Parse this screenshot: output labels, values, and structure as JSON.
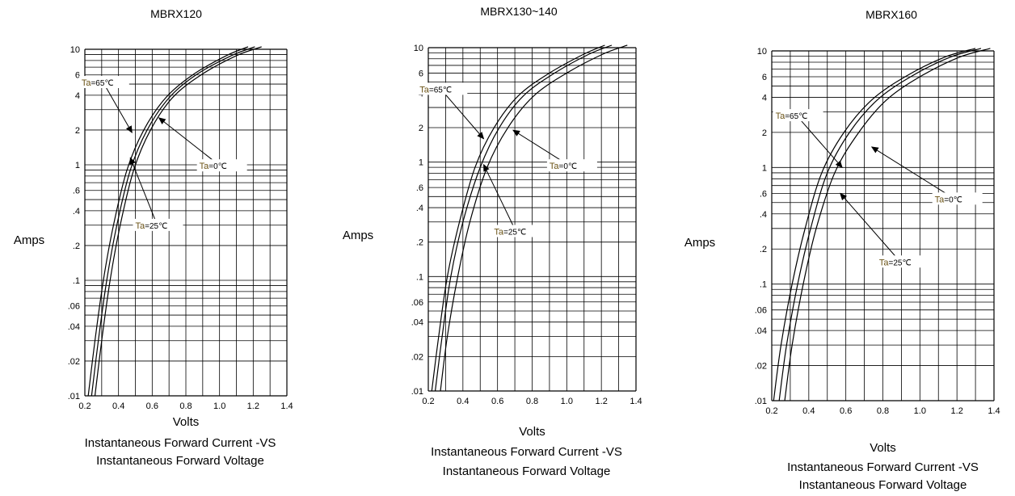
{
  "chart_data": [
    {
      "type": "line",
      "title": "MBRX120",
      "ylabel": "Amps",
      "xlabel": "Volts",
      "caption_line1": "Instantaneous Forward Current -VS",
      "caption_line2": "Instantaneous Forward Voltage",
      "xlim": [
        0.2,
        1.4
      ],
      "ylim": [
        0.01,
        10
      ],
      "yscale": "log",
      "grid": true,
      "x_ticks": [
        "0.2",
        "0.4",
        "0.6",
        "0.8",
        "1.0",
        "1.2",
        "1.4"
      ],
      "y_ticks": [
        {
          "value": 0.01,
          "label": ".01"
        },
        {
          "value": 0.02,
          "label": ".02"
        },
        {
          "value": 0.04,
          "label": ".04"
        },
        {
          "value": 0.06,
          "label": ".06"
        },
        {
          "value": 0.1,
          "label": ".1"
        },
        {
          "value": 0.2,
          "label": ".2"
        },
        {
          "value": 0.4,
          "label": ".4"
        },
        {
          "value": 0.6,
          "label": ".6"
        },
        {
          "value": 1,
          "label": "1"
        },
        {
          "value": 2,
          "label": "2"
        },
        {
          "value": 4,
          "label": "4"
        },
        {
          "value": 6,
          "label": "6"
        },
        {
          "value": 10,
          "label": "10"
        }
      ],
      "series": [
        {
          "name": "Ta=65℃",
          "x": [
            0.22,
            0.26,
            0.31,
            0.37,
            0.45,
            0.55,
            0.68,
            0.84,
            1.04,
            1.17
          ],
          "y": [
            0.01,
            0.03,
            0.1,
            0.3,
            0.9,
            2.0,
            3.8,
            6.0,
            8.8,
            10.5
          ]
        },
        {
          "name": "Ta=25℃",
          "x": [
            0.24,
            0.28,
            0.33,
            0.39,
            0.47,
            0.57,
            0.7,
            0.86,
            1.07,
            1.21
          ],
          "y": [
            0.01,
            0.03,
            0.1,
            0.3,
            0.9,
            2.0,
            3.8,
            6.0,
            8.8,
            10.5
          ]
        },
        {
          "name": "Ta=0℃",
          "x": [
            0.26,
            0.3,
            0.35,
            0.41,
            0.49,
            0.59,
            0.72,
            0.89,
            1.1,
            1.25
          ],
          "y": [
            0.01,
            0.03,
            0.1,
            0.3,
            0.9,
            2.0,
            3.8,
            6.0,
            8.8,
            10.5
          ]
        }
      ],
      "annotations": [
        {
          "prefix": "Ta",
          "suffix": "=65℃",
          "at": [
            0.18,
            5.0
          ],
          "target": [
            0.48,
            1.9
          ]
        },
        {
          "prefix": "Ta",
          "suffix": "=25℃",
          "at": [
            0.5,
            0.29
          ],
          "target": [
            0.47,
            1.15
          ]
        },
        {
          "prefix": "Ta",
          "suffix": "=0℃",
          "at": [
            0.88,
            0.95
          ],
          "target": [
            0.64,
            2.55
          ]
        }
      ]
    },
    {
      "type": "line",
      "title": "MBRX130~140",
      "ylabel": "Amps",
      "xlabel": "Volts",
      "caption_line1": "Instantaneous Forward Current -VS",
      "caption_line2": "Instantaneous Forward Voltage",
      "xlim": [
        0.2,
        1.4
      ],
      "ylim": [
        0.01,
        10
      ],
      "yscale": "log",
      "grid": true,
      "x_ticks": [
        "0.2",
        "0.4",
        "0.6",
        "0.8",
        "1.0",
        "1.2",
        "1.4"
      ],
      "y_ticks": [
        {
          "value": 0.01,
          "label": ".01"
        },
        {
          "value": 0.02,
          "label": ".02"
        },
        {
          "value": 0.04,
          "label": ".04"
        },
        {
          "value": 0.06,
          "label": ".06"
        },
        {
          "value": 0.1,
          "label": ".1"
        },
        {
          "value": 0.2,
          "label": ".2"
        },
        {
          "value": 0.4,
          "label": ".4"
        },
        {
          "value": 0.6,
          "label": ".6"
        },
        {
          "value": 1,
          "label": "1"
        },
        {
          "value": 2,
          "label": "2"
        },
        {
          "value": 4,
          "label": "4"
        },
        {
          "value": 6,
          "label": "6"
        },
        {
          "value": 10,
          "label": "10"
        }
      ],
      "series": [
        {
          "name": "Ta=65℃",
          "x": [
            0.22,
            0.26,
            0.31,
            0.38,
            0.47,
            0.58,
            0.72,
            0.9,
            1.1,
            1.22
          ],
          "y": [
            0.01,
            0.03,
            0.1,
            0.3,
            0.9,
            2.0,
            3.8,
            6.0,
            8.8,
            10.5
          ]
        },
        {
          "name": "Ta=25℃",
          "x": [
            0.24,
            0.28,
            0.33,
            0.4,
            0.5,
            0.61,
            0.75,
            0.93,
            1.13,
            1.26
          ],
          "y": [
            0.01,
            0.03,
            0.1,
            0.3,
            0.9,
            2.0,
            3.8,
            6.0,
            8.8,
            10.5
          ]
        },
        {
          "name": "Ta=0℃",
          "x": [
            0.27,
            0.31,
            0.37,
            0.44,
            0.54,
            0.66,
            0.81,
            1.0,
            1.21,
            1.35
          ],
          "y": [
            0.01,
            0.03,
            0.1,
            0.3,
            0.9,
            2.0,
            3.8,
            6.0,
            8.8,
            10.5
          ]
        }
      ],
      "annotations": [
        {
          "prefix": "Ta",
          "suffix": "=65℃",
          "at": [
            0.15,
            4.2
          ],
          "target": [
            0.52,
            1.6
          ]
        },
        {
          "prefix": "Ta",
          "suffix": "=25℃",
          "at": [
            0.58,
            0.24
          ],
          "target": [
            0.52,
            0.95
          ]
        },
        {
          "prefix": "Ta",
          "suffix": "=0℃",
          "at": [
            0.9,
            0.9
          ],
          "target": [
            0.69,
            1.9
          ]
        }
      ]
    },
    {
      "type": "line",
      "title": "MBRX160",
      "ylabel": "Amps",
      "xlabel": "Volts",
      "caption_line1": "Instantaneous Forward Current -VS",
      "caption_line2": "Instantaneous Forward Voltage",
      "xlim": [
        0.2,
        1.4
      ],
      "ylim": [
        0.01,
        10
      ],
      "yscale": "log",
      "grid": true,
      "x_ticks": [
        "0.2",
        "0.4",
        "0.6",
        "0.8",
        "1.0",
        "1.2",
        "1.4"
      ],
      "y_ticks": [
        {
          "value": 0.01,
          "label": ".01"
        },
        {
          "value": 0.02,
          "label": ".02"
        },
        {
          "value": 0.04,
          "label": ".04"
        },
        {
          "value": 0.06,
          "label": ".06"
        },
        {
          "value": 0.1,
          "label": ".1"
        },
        {
          "value": 0.2,
          "label": ".2"
        },
        {
          "value": 0.4,
          "label": ".4"
        },
        {
          "value": 0.6,
          "label": ".6"
        },
        {
          "value": 1,
          "label": "1"
        },
        {
          "value": 2,
          "label": "2"
        },
        {
          "value": 4,
          "label": "4"
        },
        {
          "value": 6,
          "label": "6"
        },
        {
          "value": 10,
          "label": "10"
        }
      ],
      "series": [
        {
          "name": "Ta=65℃",
          "x": [
            0.21,
            0.25,
            0.31,
            0.38,
            0.47,
            0.59,
            0.74,
            0.92,
            1.13,
            1.3
          ],
          "y": [
            0.01,
            0.03,
            0.1,
            0.3,
            0.9,
            2.0,
            3.8,
            6.0,
            8.8,
            10.5
          ]
        },
        {
          "name": "Ta=25℃",
          "x": [
            0.24,
            0.28,
            0.34,
            0.41,
            0.5,
            0.62,
            0.77,
            0.95,
            1.16,
            1.33
          ],
          "y": [
            0.01,
            0.03,
            0.1,
            0.3,
            0.9,
            2.0,
            3.8,
            6.0,
            8.8,
            10.5
          ]
        },
        {
          "name": "Ta=0℃",
          "x": [
            0.27,
            0.31,
            0.37,
            0.44,
            0.54,
            0.67,
            0.82,
            1.0,
            1.21,
            1.38
          ],
          "y": [
            0.01,
            0.03,
            0.1,
            0.3,
            0.9,
            2.0,
            3.8,
            6.0,
            8.8,
            10.5
          ]
        }
      ],
      "annotations": [
        {
          "prefix": "Ta",
          "suffix": "=65℃",
          "at": [
            0.22,
            2.7
          ],
          "target": [
            0.58,
            1.0
          ]
        },
        {
          "prefix": "Ta",
          "suffix": "=0℃",
          "at": [
            1.08,
            0.52
          ],
          "target": [
            0.74,
            1.5
          ]
        },
        {
          "prefix": "Ta",
          "suffix": "=25℃",
          "at": [
            0.78,
            0.15
          ],
          "target": [
            0.57,
            0.6
          ]
        }
      ]
    }
  ],
  "colors": {
    "grid": "#000000",
    "curve": "#000000",
    "annotation_prefix": "#6b5316",
    "arrow": "#000000"
  }
}
